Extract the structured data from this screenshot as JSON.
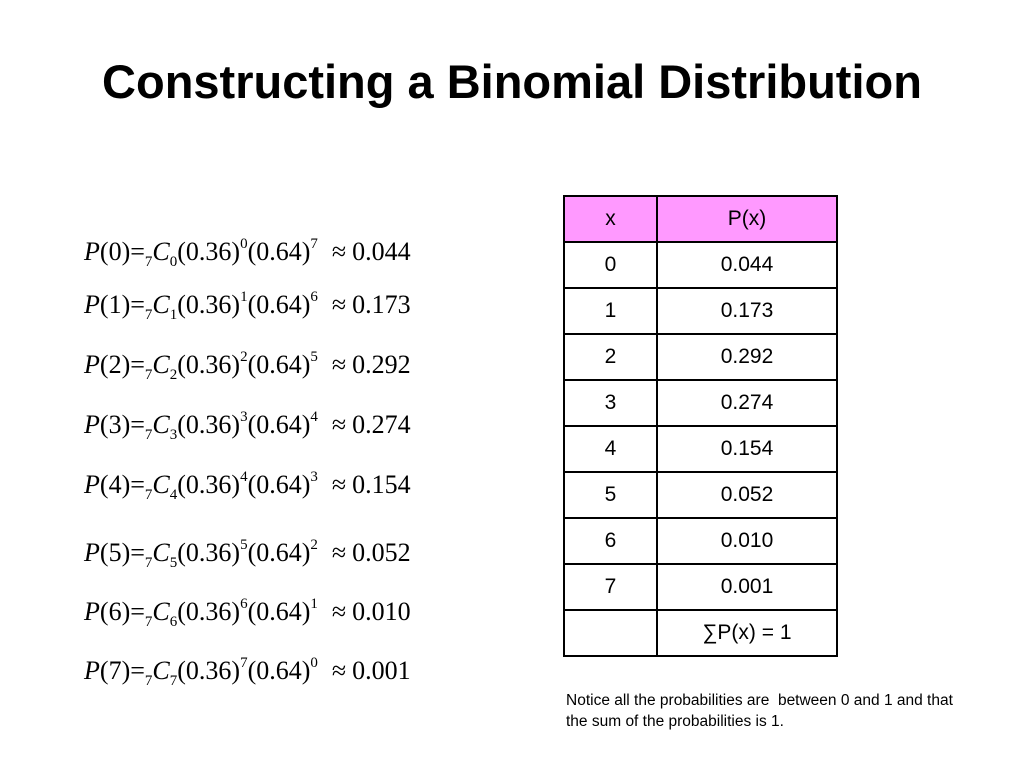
{
  "title": "Constructing a Binomial Distribution",
  "formulas": [
    {
      "k": "0",
      "n": "7",
      "p": "(0.36)",
      "pexp": "0",
      "q": "(0.64)",
      "qexp": "7",
      "result": "0.044"
    },
    {
      "k": "1",
      "n": "7",
      "p": "(0.36)",
      "pexp": "1",
      "q": "(0.64)",
      "qexp": "6",
      "result": "0.173"
    },
    {
      "k": "2",
      "n": "7",
      "p": "(0.36)",
      "pexp": "2",
      "q": "(0.64)",
      "qexp": "5",
      "result": "0.292"
    },
    {
      "k": "3",
      "n": "7",
      "p": "(0.36)",
      "pexp": "3",
      "q": "(0.64)",
      "qexp": "4",
      "result": "0.274"
    },
    {
      "k": "4",
      "n": "7",
      "p": "(0.36)",
      "pexp": "4",
      "q": "(0.64)",
      "qexp": "3",
      "result": "0.154"
    },
    {
      "k": "5",
      "n": "7",
      "p": "(0.36)",
      "pexp": "5",
      "q": "(0.64)",
      "qexp": "2",
      "result": "0.052"
    },
    {
      "k": "6",
      "n": "7",
      "p": "(0.36)",
      "pexp": "6",
      "q": "(0.64)",
      "qexp": "1",
      "result": "0.010"
    },
    {
      "k": "7",
      "n": "7",
      "p": "(0.36)",
      "pexp": "7",
      "q": "(0.64)",
      "qexp": "0",
      "result": "0.001"
    }
  ],
  "table": {
    "header_color": "#ff99ff",
    "headers": [
      "x",
      "P(x)"
    ],
    "rows": [
      [
        "0",
        "0.044"
      ],
      [
        "1",
        "0.173"
      ],
      [
        "2",
        "0.292"
      ],
      [
        "3",
        "0.274"
      ],
      [
        "4",
        "0.154"
      ],
      [
        "5",
        "0.052"
      ],
      [
        "6",
        "0.010"
      ],
      [
        "7",
        "0.001"
      ]
    ],
    "sum_label": "∑P(x) = 1"
  },
  "note": "Notice all the probabilities are  between 0 and 1 and that the sum of the probabilities is 1."
}
